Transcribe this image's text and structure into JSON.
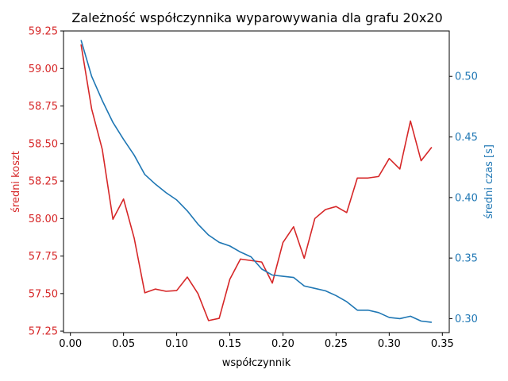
{
  "chart_data": {
    "type": "line",
    "title": "Zależność współczynnika wyparowywania dla grafu 20x20",
    "xlabel": "współczynnik",
    "xlim": [
      -0.0065,
      0.3565
    ],
    "xticks": [
      0.0,
      0.05,
      0.1,
      0.15,
      0.2,
      0.25,
      0.3,
      0.35
    ],
    "xtick_labels": [
      "0.00",
      "0.05",
      "0.10",
      "0.15",
      "0.20",
      "0.25",
      "0.30",
      "0.35"
    ],
    "x": [
      0.01,
      0.02,
      0.03,
      0.04,
      0.05,
      0.06,
      0.07,
      0.08,
      0.09,
      0.1,
      0.11,
      0.12,
      0.13,
      0.14,
      0.15,
      0.16,
      0.17,
      0.18,
      0.19,
      0.2,
      0.21,
      0.22,
      0.23,
      0.24,
      0.25,
      0.26,
      0.27,
      0.28,
      0.29,
      0.3,
      0.31,
      0.32,
      0.33,
      0.34
    ],
    "y_left": {
      "label": "średni koszt",
      "color": "#d62728",
      "lim": [
        57.24,
        59.25
      ],
      "ticks": [
        57.25,
        57.5,
        57.75,
        58.0,
        58.25,
        58.5,
        58.75,
        59.0,
        59.25
      ],
      "tick_labels": [
        "57.25",
        "57.50",
        "57.75",
        "58.00",
        "58.25",
        "58.50",
        "58.75",
        "59.00",
        "59.25"
      ],
      "values": [
        59.16,
        58.73,
        58.46,
        57.995,
        58.13,
        57.87,
        57.505,
        57.53,
        57.515,
        57.52,
        57.61,
        57.5,
        57.32,
        57.335,
        57.595,
        57.73,
        57.72,
        57.71,
        57.57,
        57.84,
        57.945,
        57.735,
        58.0,
        58.06,
        58.08,
        58.04,
        58.27,
        58.27,
        58.28,
        58.4,
        58.33,
        58.65,
        58.385,
        58.475
      ]
    },
    "y_right": {
      "label": "średni czas [s]",
      "color": "#1f77b4",
      "lim": [
        0.2885,
        0.5375
      ],
      "ticks": [
        0.3,
        0.35,
        0.4,
        0.45,
        0.5
      ],
      "tick_labels": [
        "0.30",
        "0.35",
        "0.40",
        "0.45",
        "0.50"
      ],
      "values": [
        0.53,
        0.5,
        0.48,
        0.462,
        0.448,
        0.435,
        0.419,
        0.411,
        0.404,
        0.398,
        0.389,
        0.378,
        0.369,
        0.363,
        0.36,
        0.355,
        0.351,
        0.341,
        0.336,
        0.335,
        0.334,
        0.327,
        0.325,
        0.323,
        0.319,
        0.314,
        0.307,
        0.307,
        0.305,
        0.301,
        0.3,
        0.302,
        0.298,
        0.297
      ]
    },
    "grid": false,
    "legend": "none"
  }
}
